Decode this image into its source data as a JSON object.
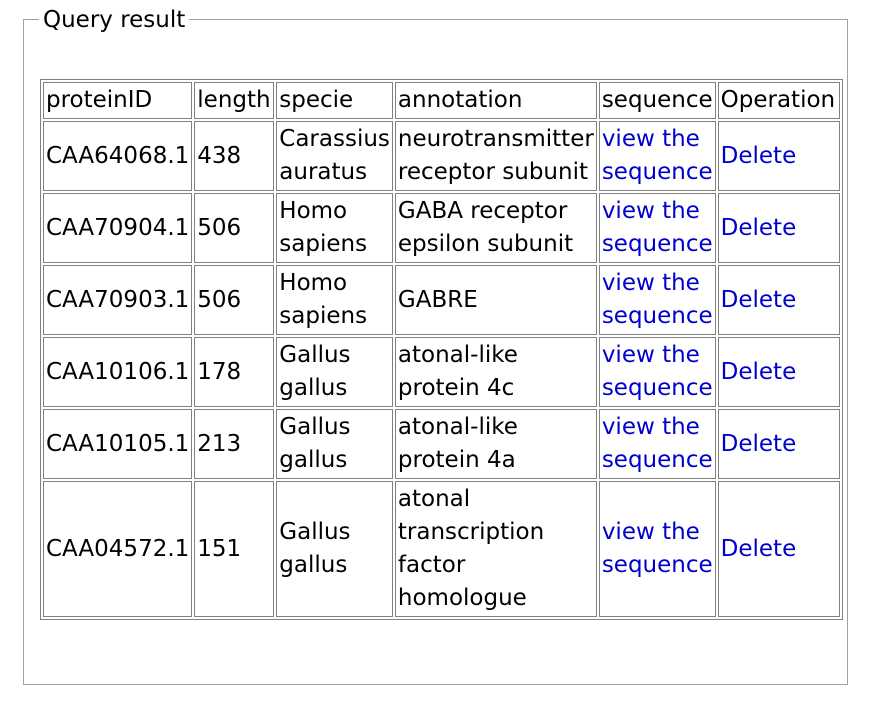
{
  "legend": "Query result",
  "headers": {
    "protein_id": "proteinID",
    "length": "length",
    "specie": "specie",
    "annotation": "annotation",
    "sequence": "sequence",
    "operation": "Operation"
  },
  "link_colors": {
    "link": "#0000cc"
  },
  "rows": [
    {
      "protein_id": "CAA64068.1",
      "length": "438",
      "specie": "Carassius auratus",
      "annotation": "neurotransmitter receptor subunit",
      "sequence_link": "view the sequence",
      "delete_link": "Delete"
    },
    {
      "protein_id": "CAA70904.1",
      "length": "506",
      "specie": "Homo sapiens",
      "annotation": "GABA receptor epsilon subunit",
      "sequence_link": "view the sequence",
      "delete_link": "Delete"
    },
    {
      "protein_id": "CAA70903.1",
      "length": "506",
      "specie": "Homo sapiens",
      "annotation": "GABRE",
      "sequence_link": "view the sequence",
      "delete_link": "Delete"
    },
    {
      "protein_id": "CAA10106.1",
      "length": "178",
      "specie": "Gallus gallus",
      "annotation": "atonal-like protein 4c",
      "sequence_link": "view the sequence",
      "delete_link": "Delete"
    },
    {
      "protein_id": "CAA10105.1",
      "length": "213",
      "specie": "Gallus gallus",
      "annotation": "atonal-like protein 4a",
      "sequence_link": "view the sequence",
      "delete_link": "Delete"
    },
    {
      "protein_id": "CAA04572.1",
      "length": "151",
      "specie": "Gallus gallus",
      "annotation": "atonal transcription factor homologue",
      "sequence_link": "view the sequence",
      "delete_link": "Delete"
    }
  ]
}
